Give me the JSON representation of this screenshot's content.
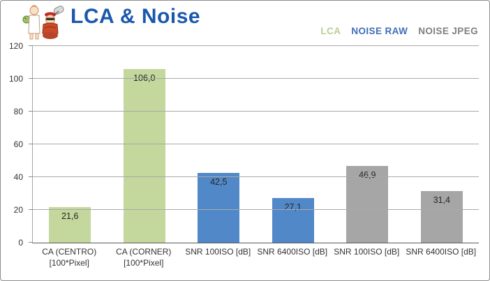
{
  "header": {
    "title": "LCA & Noise",
    "title_color": "#1b58ad"
  },
  "legend": {
    "items": [
      {
        "label": "LCA",
        "color": "#b9cf93"
      },
      {
        "label": "NOISE RAW",
        "color": "#3f6fb7"
      },
      {
        "label": "NOISE JPEG",
        "color": "#7f7f7f"
      }
    ]
  },
  "chart_data": {
    "type": "bar",
    "title": "LCA & Noise",
    "categories": [
      [
        "CA (CENTRO)",
        "[100*Pixel]"
      ],
      [
        "CA (CORNER)",
        "[100*Pixel]"
      ],
      [
        "SNR 100ISO [dB]"
      ],
      [
        "SNR 6400ISO [dB]"
      ],
      [
        "SNR 100ISO [dB]"
      ],
      [
        "SNR 6400ISO [dB]"
      ]
    ],
    "values": [
      21.6,
      106.0,
      42.5,
      27.1,
      46.9,
      31.4
    ],
    "value_labels": [
      "21,6",
      "106,0",
      "42,5",
      "27,1",
      "46,9",
      "31,4"
    ],
    "bar_colors": [
      "#c4d79d",
      "#c4d79d",
      "#5189c8",
      "#5189c8",
      "#a6a6a6",
      "#a6a6a6"
    ],
    "bar_groups": [
      "LCA",
      "LCA",
      "NOISE RAW",
      "NOISE RAW",
      "NOISE JPEG",
      "NOISE JPEG"
    ],
    "ylim": [
      0,
      120
    ],
    "yticks": [
      0,
      20,
      40,
      60,
      80,
      100,
      120
    ],
    "grid": true,
    "legend_position": "top-right",
    "colors": {
      "grid": "#a9a9a9",
      "axis": "#595959",
      "text": "#333333"
    }
  }
}
